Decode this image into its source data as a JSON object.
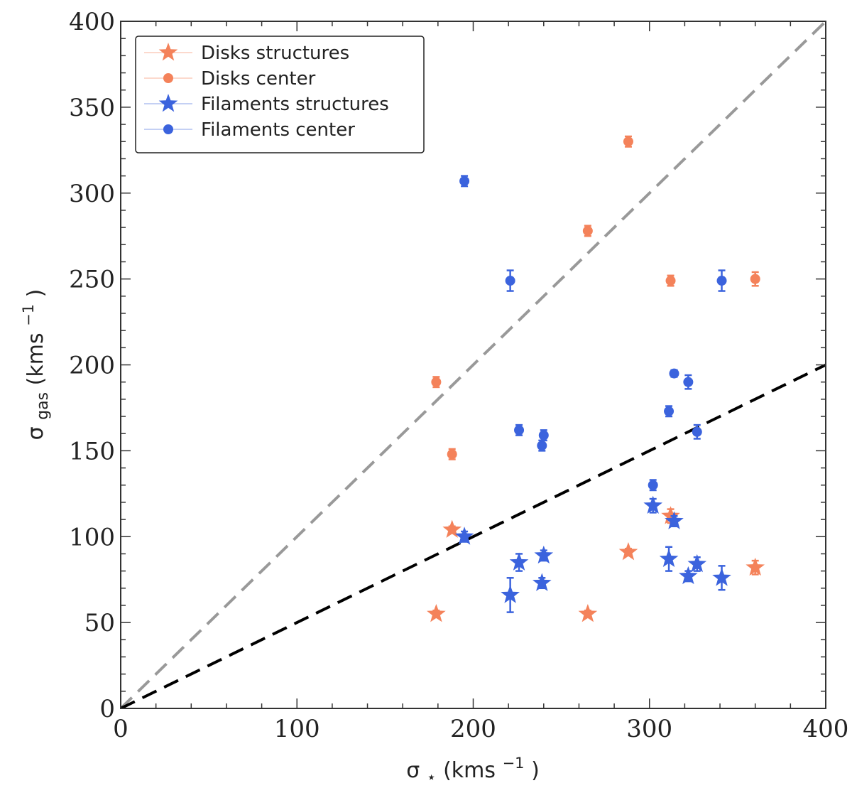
{
  "chart_data": {
    "type": "scatter",
    "xlabel_sym": "σ",
    "xlabel_sub": "⋆",
    "ylabel_sym": "σ",
    "ylabel_sub": "gas",
    "unit_main": " (kms",
    "unit_exp": "−1",
    "unit_close": ")",
    "xlim": [
      0,
      400
    ],
    "ylim": [
      0,
      400
    ],
    "xticks": [
      0,
      100,
      200,
      300,
      400
    ],
    "yticks": [
      0,
      50,
      100,
      150,
      200,
      250,
      300,
      350,
      400
    ],
    "xtick_labels": [
      "0",
      "100",
      "200",
      "300",
      "400"
    ],
    "ytick_labels": [
      "0",
      "50",
      "100",
      "150",
      "200",
      "250",
      "300",
      "350",
      "400"
    ],
    "reference_lines": [
      {
        "name": "one-to-one",
        "slope": 1.0,
        "color": "#999999"
      },
      {
        "name": "half",
        "slope": 0.5,
        "color": "#000000"
      }
    ],
    "series": [
      {
        "name": "Disks structures",
        "marker": "star",
        "color": "#F4825A",
        "points": [
          {
            "x": 179,
            "y": 55,
            "err": 2
          },
          {
            "x": 188,
            "y": 104,
            "err": 2
          },
          {
            "x": 265,
            "y": 55,
            "err": 2
          },
          {
            "x": 288,
            "y": 91,
            "err": 2
          },
          {
            "x": 312,
            "y": 112,
            "err": 4
          },
          {
            "x": 360,
            "y": 82,
            "err": 4
          }
        ]
      },
      {
        "name": "Disks center",
        "marker": "circle",
        "color": "#F4825A",
        "points": [
          {
            "x": 179,
            "y": 190,
            "err": 3
          },
          {
            "x": 188,
            "y": 148,
            "err": 3
          },
          {
            "x": 265,
            "y": 278,
            "err": 3
          },
          {
            "x": 288,
            "y": 330,
            "err": 3
          },
          {
            "x": 312,
            "y": 249,
            "err": 3
          },
          {
            "x": 360,
            "y": 250,
            "err": 4
          }
        ]
      },
      {
        "name": "Filaments structures",
        "marker": "star",
        "color": "#3B63DD",
        "points": [
          {
            "x": 195,
            "y": 100,
            "err": 3
          },
          {
            "x": 221,
            "y": 66,
            "err": 10
          },
          {
            "x": 226,
            "y": 85,
            "err": 5
          },
          {
            "x": 239,
            "y": 73,
            "err": 3
          },
          {
            "x": 240,
            "y": 89,
            "err": 3
          },
          {
            "x": 302,
            "y": 118,
            "err": 4
          },
          {
            "x": 311,
            "y": 87,
            "err": 7
          },
          {
            "x": 314,
            "y": 109,
            "err": 3
          },
          {
            "x": 322,
            "y": 77,
            "err": 3
          },
          {
            "x": 327,
            "y": 84,
            "err": 4
          },
          {
            "x": 341,
            "y": 76,
            "err": 7
          }
        ]
      },
      {
        "name": "Filaments center",
        "marker": "circle",
        "color": "#3B63DD",
        "points": [
          {
            "x": 195,
            "y": 307,
            "err": 3
          },
          {
            "x": 221,
            "y": 249,
            "err": 6
          },
          {
            "x": 226,
            "y": 162,
            "err": 3
          },
          {
            "x": 239,
            "y": 153,
            "err": 3
          },
          {
            "x": 240,
            "y": 159,
            "err": 3
          },
          {
            "x": 302,
            "y": 130,
            "err": 3
          },
          {
            "x": 311,
            "y": 173,
            "err": 3
          },
          {
            "x": 314,
            "y": 195,
            "err": 2
          },
          {
            "x": 322,
            "y": 190,
            "err": 4
          },
          {
            "x": 327,
            "y": 161,
            "err": 4
          },
          {
            "x": 341,
            "y": 249,
            "err": 6
          }
        ]
      }
    ],
    "legend_location": "top-left"
  }
}
